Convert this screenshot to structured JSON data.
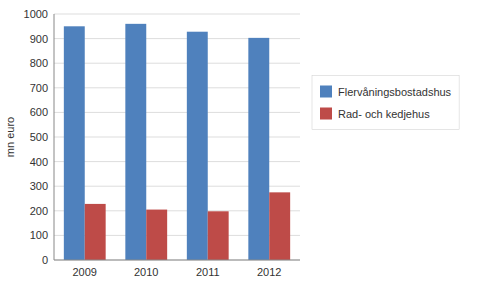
{
  "chart_data": {
    "type": "bar",
    "categories": [
      "2009",
      "2010",
      "2011",
      "2012"
    ],
    "series": [
      {
        "name": "Flervåningsbostadshus",
        "color": "#4F81BD",
        "values": [
          950,
          960,
          928,
          903
        ]
      },
      {
        "name": "Rad- och kedjehus",
        "color": "#BE4B48",
        "values": [
          228,
          205,
          198,
          275
        ]
      }
    ],
    "ylabel": "mn euro",
    "ylim": [
      0,
      1000
    ],
    "yticks": [
      0,
      100,
      200,
      300,
      400,
      500,
      600,
      700,
      800,
      900,
      1000
    ],
    "grid": true,
    "legend": "right"
  }
}
